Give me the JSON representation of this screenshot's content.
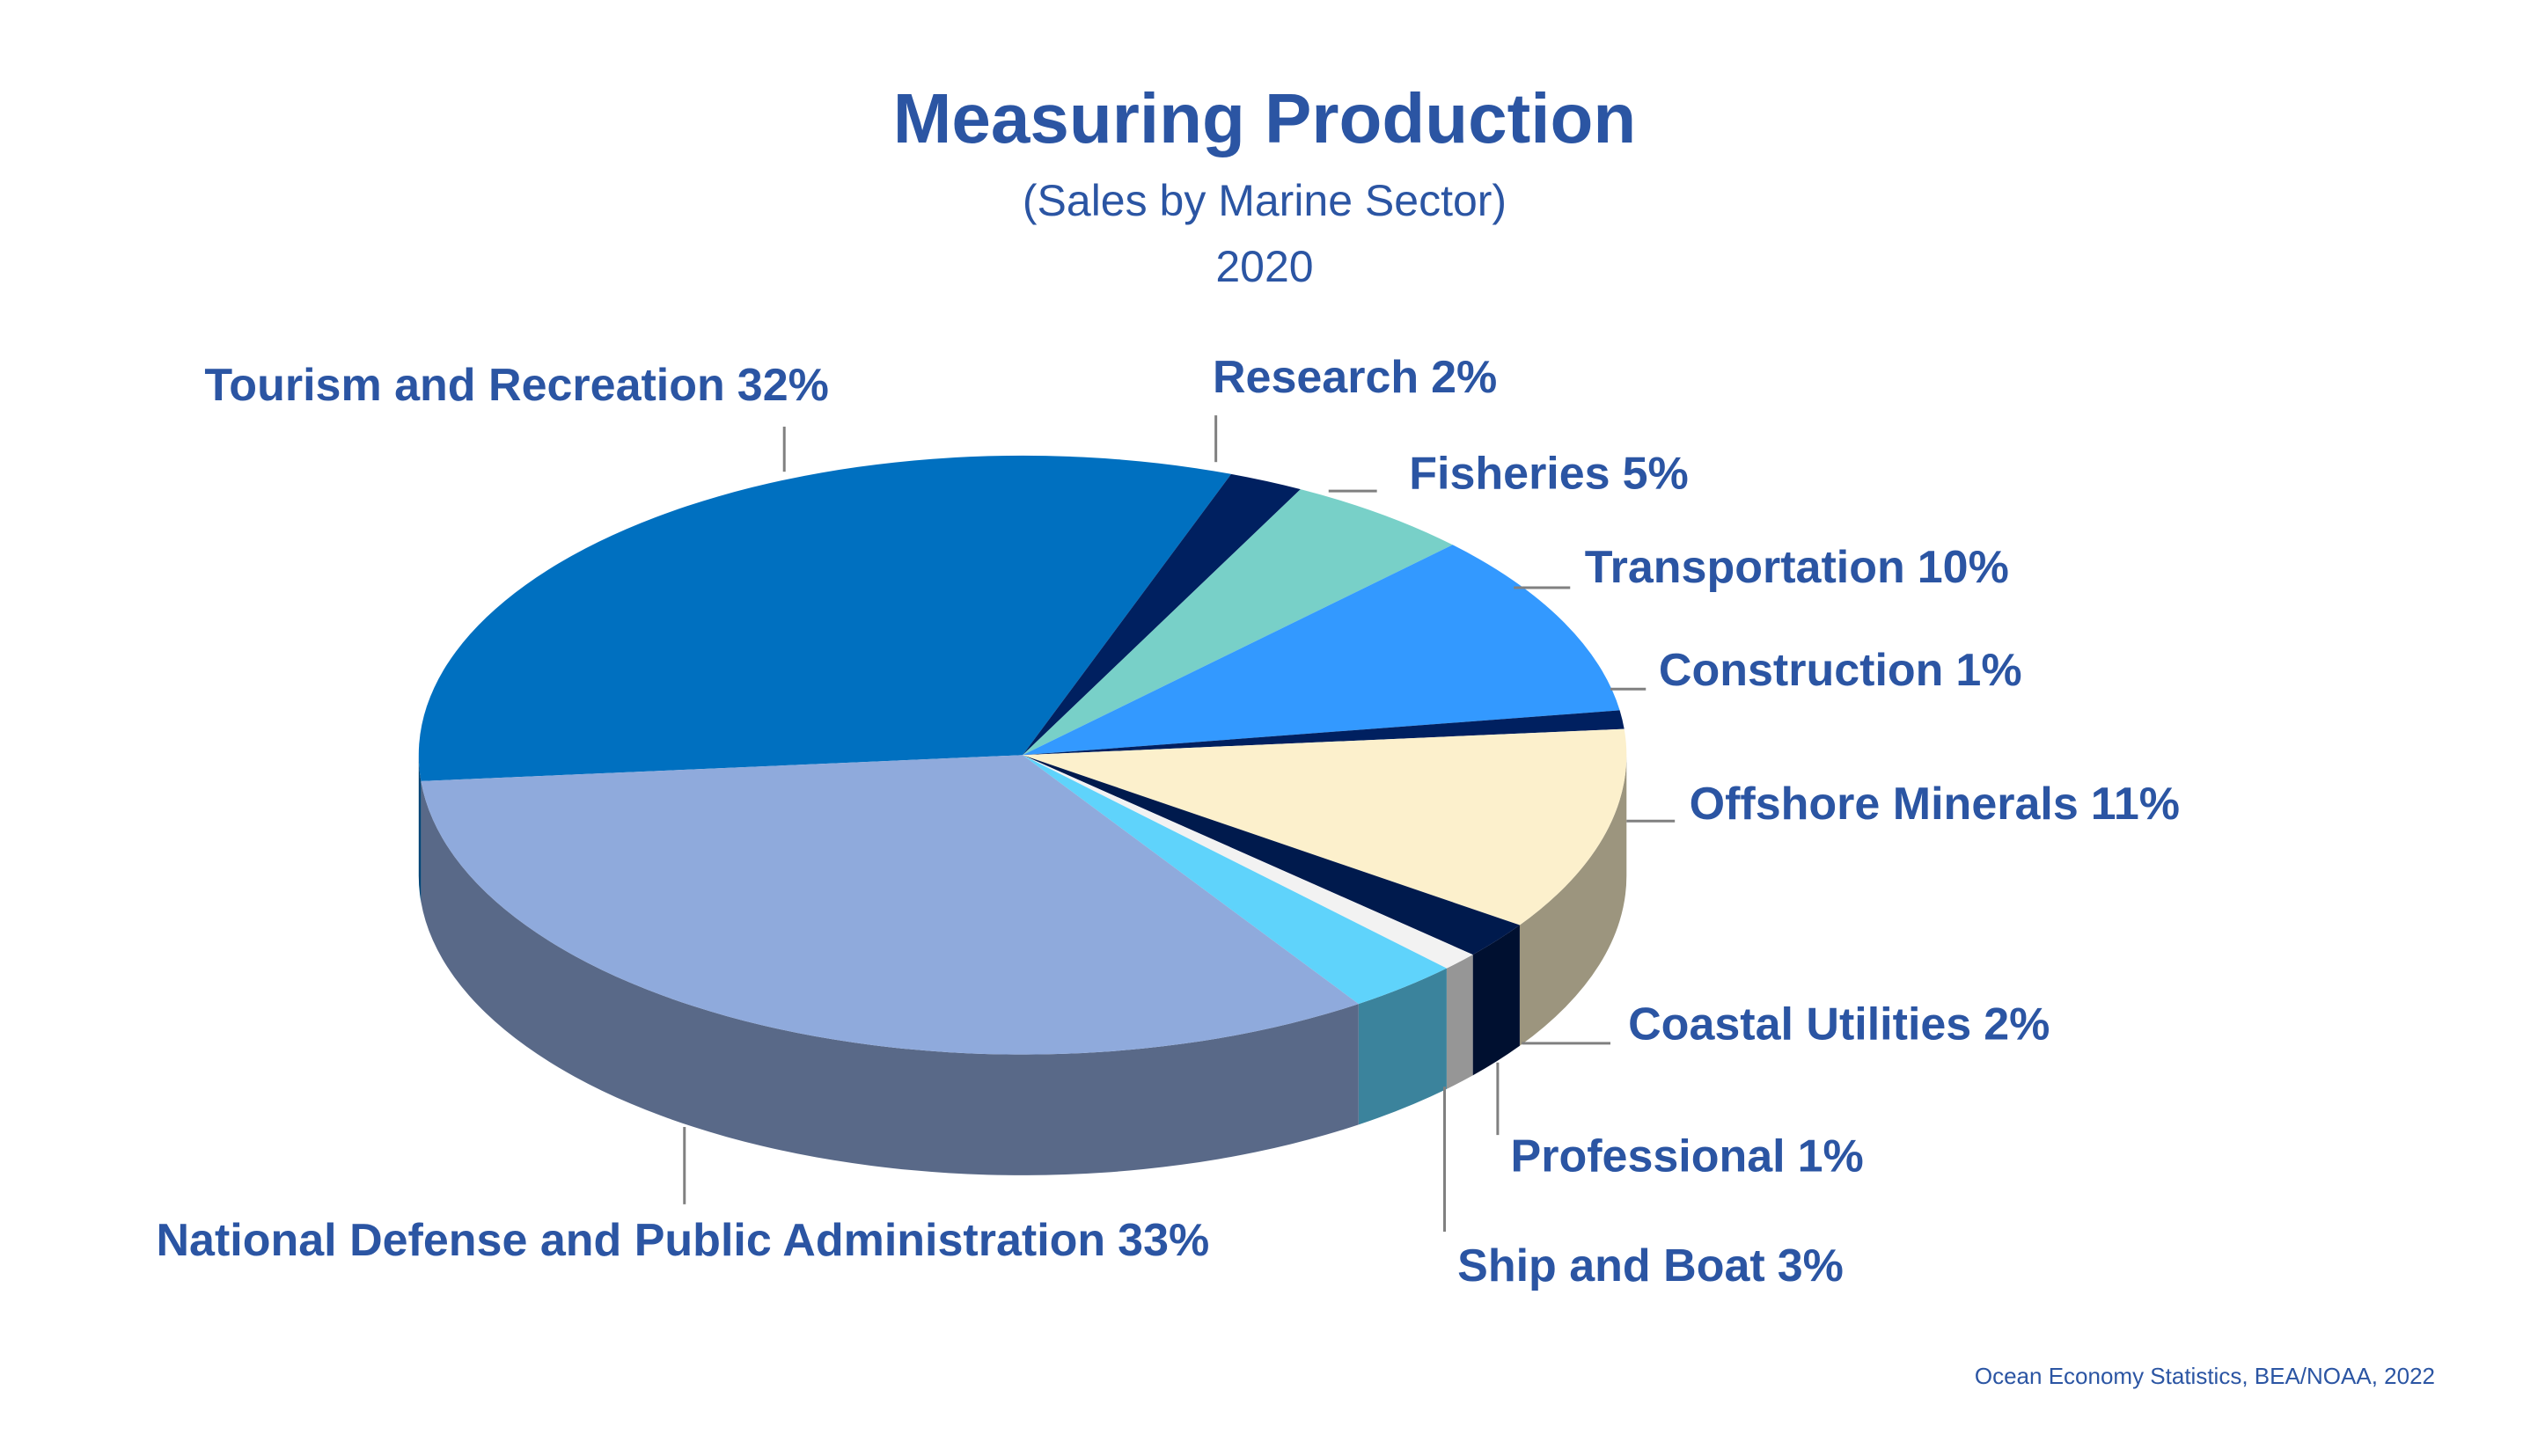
{
  "chart_data": {
    "type": "pie3d",
    "title": "Measuring Production",
    "subtitle": "(Sales by Marine Sector)",
    "period": "2020",
    "source": "Ocean Economy Statistics, BEA/NOAA, 2022",
    "categories": [
      "Tourism and Recreation",
      "Research",
      "Fisheries",
      "Transportation",
      "Construction",
      "Offshore Minerals",
      "Coastal Utilities",
      "Professional",
      "Ship and Boat",
      "National Defense and Public Administration"
    ],
    "values": [
      32,
      2,
      5,
      10,
      1,
      11,
      2,
      1,
      3,
      33
    ],
    "value_labels": [
      "32%",
      "2%",
      "5%",
      "10%",
      "1%",
      "11%",
      "2%",
      "1%",
      "3%",
      "33%"
    ],
    "colors": [
      "#0070c0",
      "#002060",
      "#78d0c8",
      "#3399ff",
      "#002060",
      "#fcf0cc",
      "#001a4d",
      "#f2f2f2",
      "#5fd3fb",
      "#8faadc"
    ]
  }
}
